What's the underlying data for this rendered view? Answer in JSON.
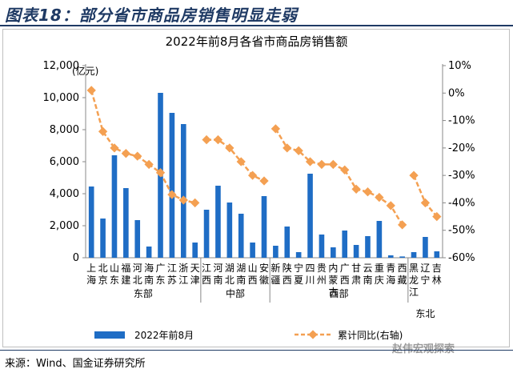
{
  "header": {
    "title": "图表18：部分省市商品房销售明显走弱"
  },
  "source": "来源：Wind、国金证券研究所",
  "watermark": "赵伟宏观探索",
  "colors": {
    "bar": "#1f6dc5",
    "line": "#f4a052",
    "header": "#1f3a64"
  },
  "chart_data": {
    "type": "bar+line",
    "title": "2022年前8月各省市商品房销售额",
    "unit_label": "(亿元)",
    "legend_position": "bottom",
    "categories": [
      "上海",
      "北京",
      "山东",
      "福建",
      "河北",
      "海南",
      "广东",
      "江苏",
      "浙江",
      "天津",
      "江西",
      "河南",
      "湖北",
      "湖南",
      "山西",
      "安徽",
      "新疆",
      "陕西",
      "宁夏",
      "四川",
      "贵州",
      "内蒙古",
      "广西",
      "甘肃",
      "云南",
      "重庆",
      "青海",
      "西藏",
      "黑龙江",
      "辽宁",
      "吉林"
    ],
    "category_lines": [
      [
        "上",
        "海"
      ],
      [
        "北",
        "京"
      ],
      [
        "山",
        "东"
      ],
      [
        "福",
        "建"
      ],
      [
        "河",
        "北"
      ],
      [
        "海",
        "南"
      ],
      [
        "广",
        "东"
      ],
      [
        "江",
        "苏"
      ],
      [
        "浙",
        "江"
      ],
      [
        "天",
        "津"
      ],
      [
        "江",
        "西"
      ],
      [
        "河",
        "南"
      ],
      [
        "湖",
        "北"
      ],
      [
        "湖",
        "南"
      ],
      [
        "山",
        "西"
      ],
      [
        "安",
        "徽"
      ],
      [
        "新",
        "疆"
      ],
      [
        "陕",
        "西"
      ],
      [
        "宁",
        "夏"
      ],
      [
        "四",
        "川"
      ],
      [
        "贵",
        "州"
      ],
      [
        "内",
        "蒙",
        "古"
      ],
      [
        "广",
        "西"
      ],
      [
        "甘",
        "肃"
      ],
      [
        "云",
        "南"
      ],
      [
        "重",
        "庆"
      ],
      [
        "青",
        "海"
      ],
      [
        "西",
        "藏"
      ],
      [
        "黑",
        "龙",
        "江"
      ],
      [
        "辽",
        "宁"
      ],
      [
        "吉",
        "林"
      ]
    ],
    "groups": [
      {
        "name": "东部",
        "start": 0,
        "end": 9
      },
      {
        "name": "中部",
        "start": 10,
        "end": 15
      },
      {
        "name": "西部",
        "start": 16,
        "end": 27
      },
      {
        "name": "东北",
        "start": 28,
        "end": 30
      }
    ],
    "series": [
      {
        "name": "2022年前8月",
        "type": "bar",
        "axis": "left",
        "values": [
          4450,
          2450,
          6400,
          4350,
          2350,
          700,
          10300,
          9050,
          8350,
          950,
          3000,
          4500,
          3450,
          2750,
          950,
          3850,
          750,
          1950,
          350,
          5250,
          1450,
          650,
          1700,
          800,
          1350,
          2300,
          150,
          80,
          350,
          1300,
          400
        ]
      },
      {
        "name": "累计同比(右轴)",
        "type": "line",
        "axis": "right",
        "values": [
          1,
          -14,
          -20,
          -22,
          -23,
          -26,
          -29,
          -37,
          -39,
          -40,
          -17,
          -17,
          -20,
          -25,
          -30,
          -32,
          -13,
          -20,
          -21,
          -25,
          -26,
          -26,
          -28,
          -35,
          -36,
          -38,
          -41,
          -48,
          -30,
          -40,
          -45
        ]
      }
    ],
    "y_left": {
      "min": 0,
      "max": 12000,
      "ticks": [
        "0",
        "2,000",
        "4,000",
        "6,000",
        "8,000",
        "10,000",
        "12,000"
      ]
    },
    "y_right": {
      "min": -60,
      "max": 10,
      "ticks": [
        "-60%",
        "-50%",
        "-40%",
        "-30%",
        "-20%",
        "-10%",
        "0%",
        "10%"
      ]
    },
    "legend": {
      "bar_label": "2022年前8月",
      "line_label": "累计同比(右轴)"
    }
  }
}
